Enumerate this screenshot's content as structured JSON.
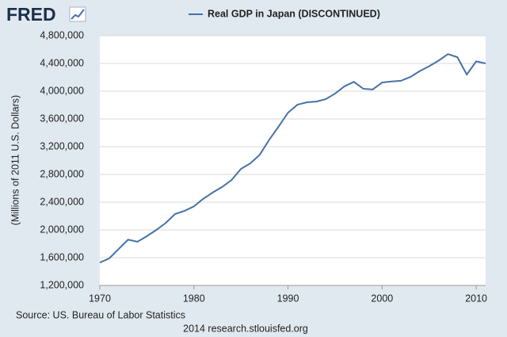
{
  "logo": "FRED",
  "chart_data": {
    "type": "line",
    "y_label": "(Millions of 2011 U.S. Dollars)",
    "source": "Source: US. Bureau of Labor Statistics",
    "footer": "2014 research.stlouisfed.org",
    "x": [
      1970,
      1971,
      1972,
      1973,
      1974,
      1975,
      1976,
      1977,
      1978,
      1979,
      1980,
      1981,
      1982,
      1983,
      1984,
      1985,
      1986,
      1987,
      1988,
      1989,
      1990,
      1991,
      1992,
      1993,
      1994,
      1995,
      1996,
      1997,
      1998,
      1999,
      2000,
      2001,
      2002,
      2003,
      2004,
      2005,
      2006,
      2007,
      2008,
      2009,
      2010,
      2011
    ],
    "series": [
      {
        "name": "Real GDP in Japan (DISCONTINUED)",
        "color": "#4572a7",
        "values": [
          1530000,
          1590000,
          1725000,
          1860000,
          1830000,
          1910000,
          2000000,
          2100000,
          2230000,
          2275000,
          2340000,
          2450000,
          2540000,
          2620000,
          2720000,
          2880000,
          2960000,
          3085000,
          3300000,
          3490000,
          3690000,
          3805000,
          3840000,
          3850000,
          3885000,
          3965000,
          4070000,
          4135000,
          4035000,
          4025000,
          4125000,
          4140000,
          4150000,
          4205000,
          4290000,
          4360000,
          4440000,
          4535000,
          4490000,
          4240000,
          4430000,
          4400000
        ]
      }
    ],
    "xlim": [
      1970,
      2011
    ],
    "xticks": [
      1970,
      1980,
      1990,
      2000,
      2010
    ],
    "ylim": [
      1200000,
      4800000
    ],
    "yticks": [
      {
        "value": 1200000,
        "label": "1,200,000"
      },
      {
        "value": 1600000,
        "label": "1,600,000"
      },
      {
        "value": 2000000,
        "label": "2,000,000"
      },
      {
        "value": 2400000,
        "label": "2,400,000"
      },
      {
        "value": 2800000,
        "label": "2,800,000"
      },
      {
        "value": 3200000,
        "label": "3,200,000"
      },
      {
        "value": 3600000,
        "label": "3,600,000"
      },
      {
        "value": 4000000,
        "label": "4,000,000"
      },
      {
        "value": 4400000,
        "label": "4,400,000"
      },
      {
        "value": 4800000,
        "label": "4,800,000"
      }
    ],
    "grid": true
  }
}
